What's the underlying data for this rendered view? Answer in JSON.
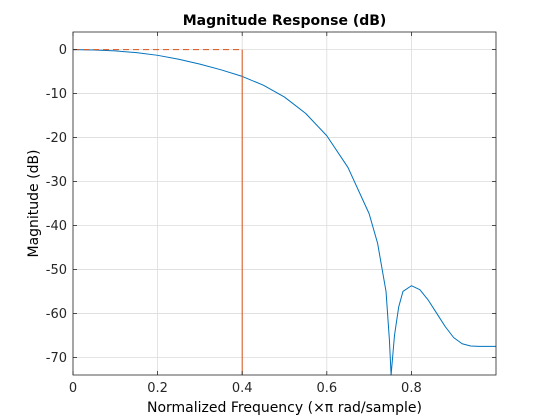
{
  "chart_data": {
    "type": "line",
    "title": "Magnitude Response (dB)",
    "xlabel": "Normalized Frequency (×π rad/sample)",
    "ylabel": "Magnitude (dB)",
    "xlim": [
      0,
      1
    ],
    "ylim": [
      -74,
      4
    ],
    "xticks": [
      0,
      0.2,
      0.4,
      0.6,
      0.8
    ],
    "yticks": [
      0,
      -10,
      -20,
      -30,
      -40,
      -50,
      -60,
      -70
    ],
    "grid": true,
    "colors": {
      "response": "#0072bd",
      "mask": "#d95319",
      "grid": "#dcdcdc",
      "axes": "#262626"
    },
    "series": [
      {
        "style": "solid",
        "color": "#0072bd",
        "x": [
          0,
          0.05,
          0.1,
          0.15,
          0.2,
          0.25,
          0.3,
          0.35,
          0.4,
          0.45,
          0.5,
          0.55,
          0.6,
          0.65,
          0.7,
          0.72,
          0.74,
          0.748,
          0.752,
          0.76,
          0.77,
          0.78,
          0.8,
          0.82,
          0.84,
          0.86,
          0.88,
          0.9,
          0.92,
          0.94,
          0.96,
          1.0
        ],
        "y": [
          0,
          -0.1,
          -0.3,
          -0.7,
          -1.3,
          -2.2,
          -3.3,
          -4.6,
          -6.1,
          -8.1,
          -10.8,
          -14.5,
          -19.6,
          -26.8,
          -37.3,
          -44.0,
          -55.0,
          -66.0,
          -74.0,
          -65.0,
          -58.5,
          -55.0,
          -53.7,
          -54.6,
          -57.0,
          -60.0,
          -63.0,
          -65.5,
          -66.9,
          -67.4,
          -67.5,
          -67.5
        ]
      },
      {
        "style": "dashed",
        "color": "#d95319",
        "x": [
          0,
          0.4
        ],
        "y": [
          0,
          0
        ]
      },
      {
        "style": "solid",
        "color": "#d95319",
        "x": [
          0.4,
          0.4
        ],
        "y": [
          0,
          -74
        ]
      }
    ]
  }
}
